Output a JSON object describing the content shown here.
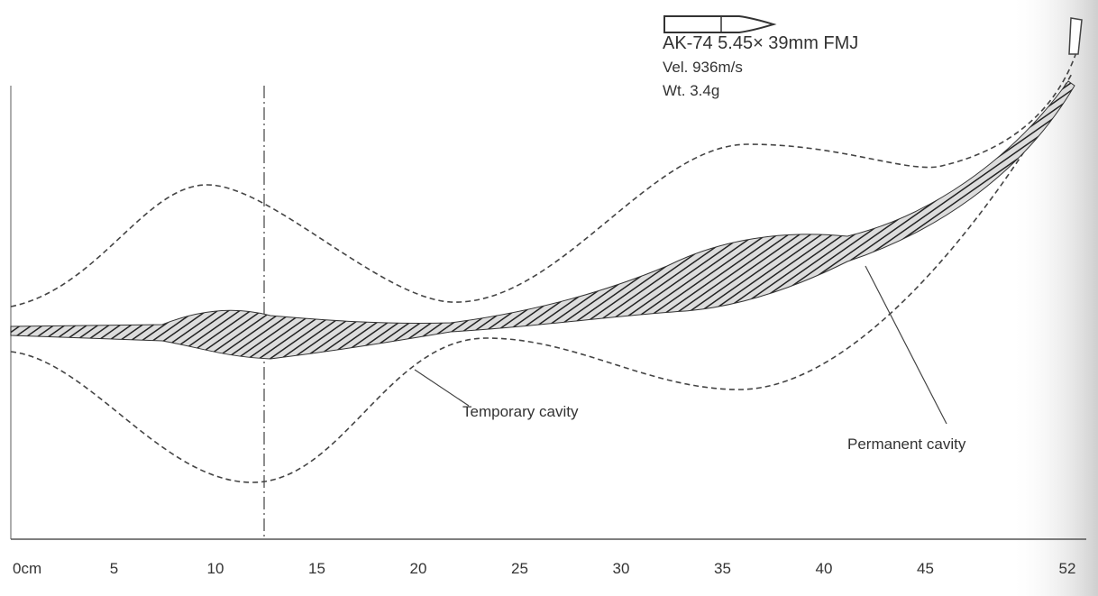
{
  "bullet": {
    "name": "AK-74 5.45× 39mm FMJ",
    "velocity": "Vel. 936m/s",
    "weight": "Wt. 3.4g"
  },
  "labels": {
    "temporary": "Temporary cavity",
    "permanent": "Permanent cavity"
  },
  "axis": {
    "ticks": [
      "0cm",
      "5",
      "10",
      "15",
      "20",
      "25",
      "30",
      "35",
      "40",
      "45",
      "52"
    ]
  }
}
